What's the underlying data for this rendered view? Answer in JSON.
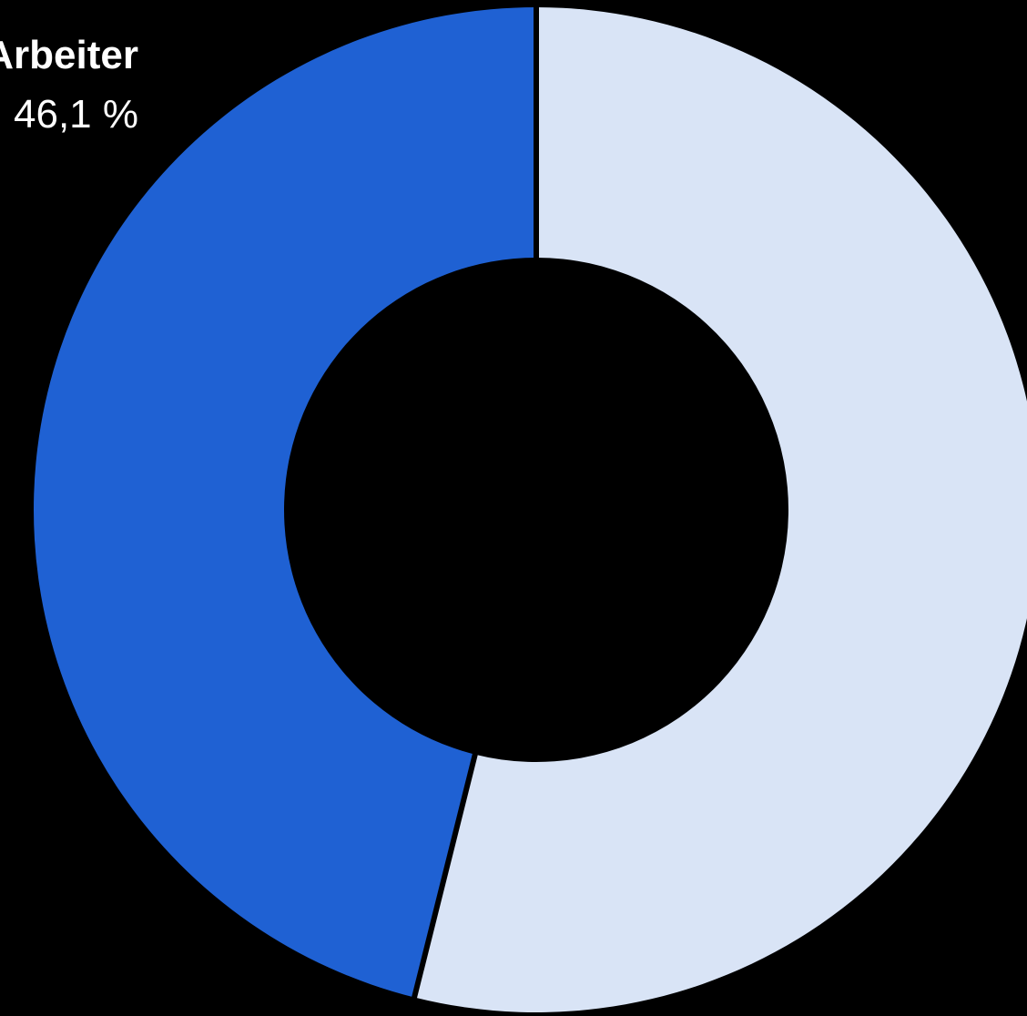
{
  "chart_data": {
    "type": "pie",
    "variant": "donut",
    "title": "",
    "slices": [
      {
        "name": "Arbeiter",
        "value": 46.1,
        "value_label": "46,1 %",
        "color": "#1f61d3",
        "label_visible": true
      },
      {
        "name": "",
        "value": 53.9,
        "value_label": "",
        "color": "#d9e4f6",
        "label_visible": false
      }
    ],
    "start": "top",
    "direction": "counter-clockwise",
    "separator_color": "#000000",
    "label_color": "#ffffff",
    "background": "#000000",
    "legend": "none"
  }
}
